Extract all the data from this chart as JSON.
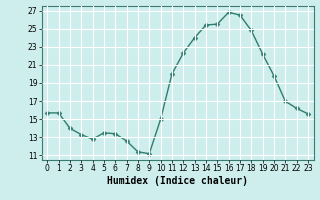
{
  "x": [
    0,
    1,
    2,
    3,
    4,
    5,
    6,
    7,
    8,
    9,
    10,
    11,
    12,
    13,
    14,
    15,
    16,
    17,
    18,
    19,
    20,
    21,
    22,
    23
  ],
  "y": [
    15.7,
    15.7,
    14.0,
    13.3,
    12.8,
    13.5,
    13.4,
    12.6,
    11.4,
    11.2,
    15.0,
    20.0,
    22.3,
    24.0,
    25.4,
    25.5,
    26.8,
    26.5,
    24.8,
    22.2,
    19.8,
    17.0,
    16.2,
    15.6
  ],
  "line_color": "#2e7d6e",
  "marker": "D",
  "markersize": 2.5,
  "linewidth": 1.0,
  "background_color": "#ceeeed",
  "grid_color": "#ffffff",
  "xlabel": "Humidex (Indice chaleur)",
  "xlim": [
    -0.5,
    23.5
  ],
  "ylim": [
    10.5,
    27.5
  ],
  "yticks": [
    11,
    13,
    15,
    17,
    19,
    21,
    23,
    25,
    27
  ],
  "xticks": [
    0,
    1,
    2,
    3,
    4,
    5,
    6,
    7,
    8,
    9,
    10,
    11,
    12,
    13,
    14,
    15,
    16,
    17,
    18,
    19,
    20,
    21,
    22,
    23
  ],
  "tick_fontsize": 5.5,
  "xlabel_fontsize": 7.0,
  "axis_color": "#3a7a70"
}
